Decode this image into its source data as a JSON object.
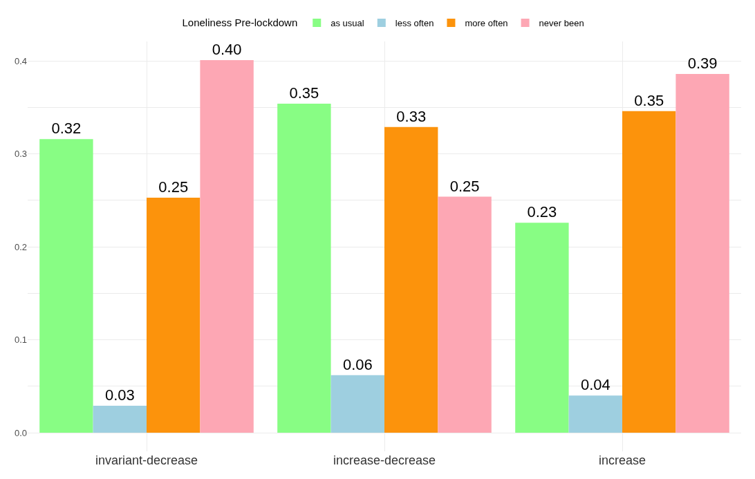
{
  "chart_data": {
    "type": "bar",
    "categories": [
      "invariant-decrease",
      "increase-decrease",
      "increase"
    ],
    "legend_title": "Loneliness Pre-lockdown",
    "series": [
      {
        "name": "as usual",
        "color": "#88fd84",
        "values": [
          0.316,
          0.354,
          0.226
        ],
        "value_labels": [
          "0.32",
          "0.35",
          "0.23"
        ]
      },
      {
        "name": "less often",
        "color": "#9ecfe0",
        "values": [
          0.029,
          0.062,
          0.04
        ],
        "value_labels": [
          "0.03",
          "0.06",
          "0.04"
        ]
      },
      {
        "name": "more often",
        "color": "#fc930c",
        "values": [
          0.253,
          0.329,
          0.346
        ],
        "value_labels": [
          "0.25",
          "0.33",
          "0.35"
        ]
      },
      {
        "name": "never been",
        "color": "#fda7b4",
        "values": [
          0.401,
          0.254,
          0.386
        ],
        "value_labels": [
          "0.40",
          "0.25",
          "0.39"
        ]
      }
    ],
    "ylim": [
      -0.02,
      0.421
    ],
    "yticks": [
      {
        "value": 0.0,
        "label": "0.0"
      },
      {
        "value": 0.05,
        "label": null
      },
      {
        "value": 0.1,
        "label": "0.1"
      },
      {
        "value": 0.15,
        "label": null
      },
      {
        "value": 0.2,
        "label": "0.2"
      },
      {
        "value": 0.25,
        "label": null
      },
      {
        "value": 0.3,
        "label": "0.3"
      },
      {
        "value": 0.35,
        "label": null
      },
      {
        "value": 0.4,
        "label": "0.4"
      }
    ],
    "grid": true,
    "legend": "top"
  }
}
